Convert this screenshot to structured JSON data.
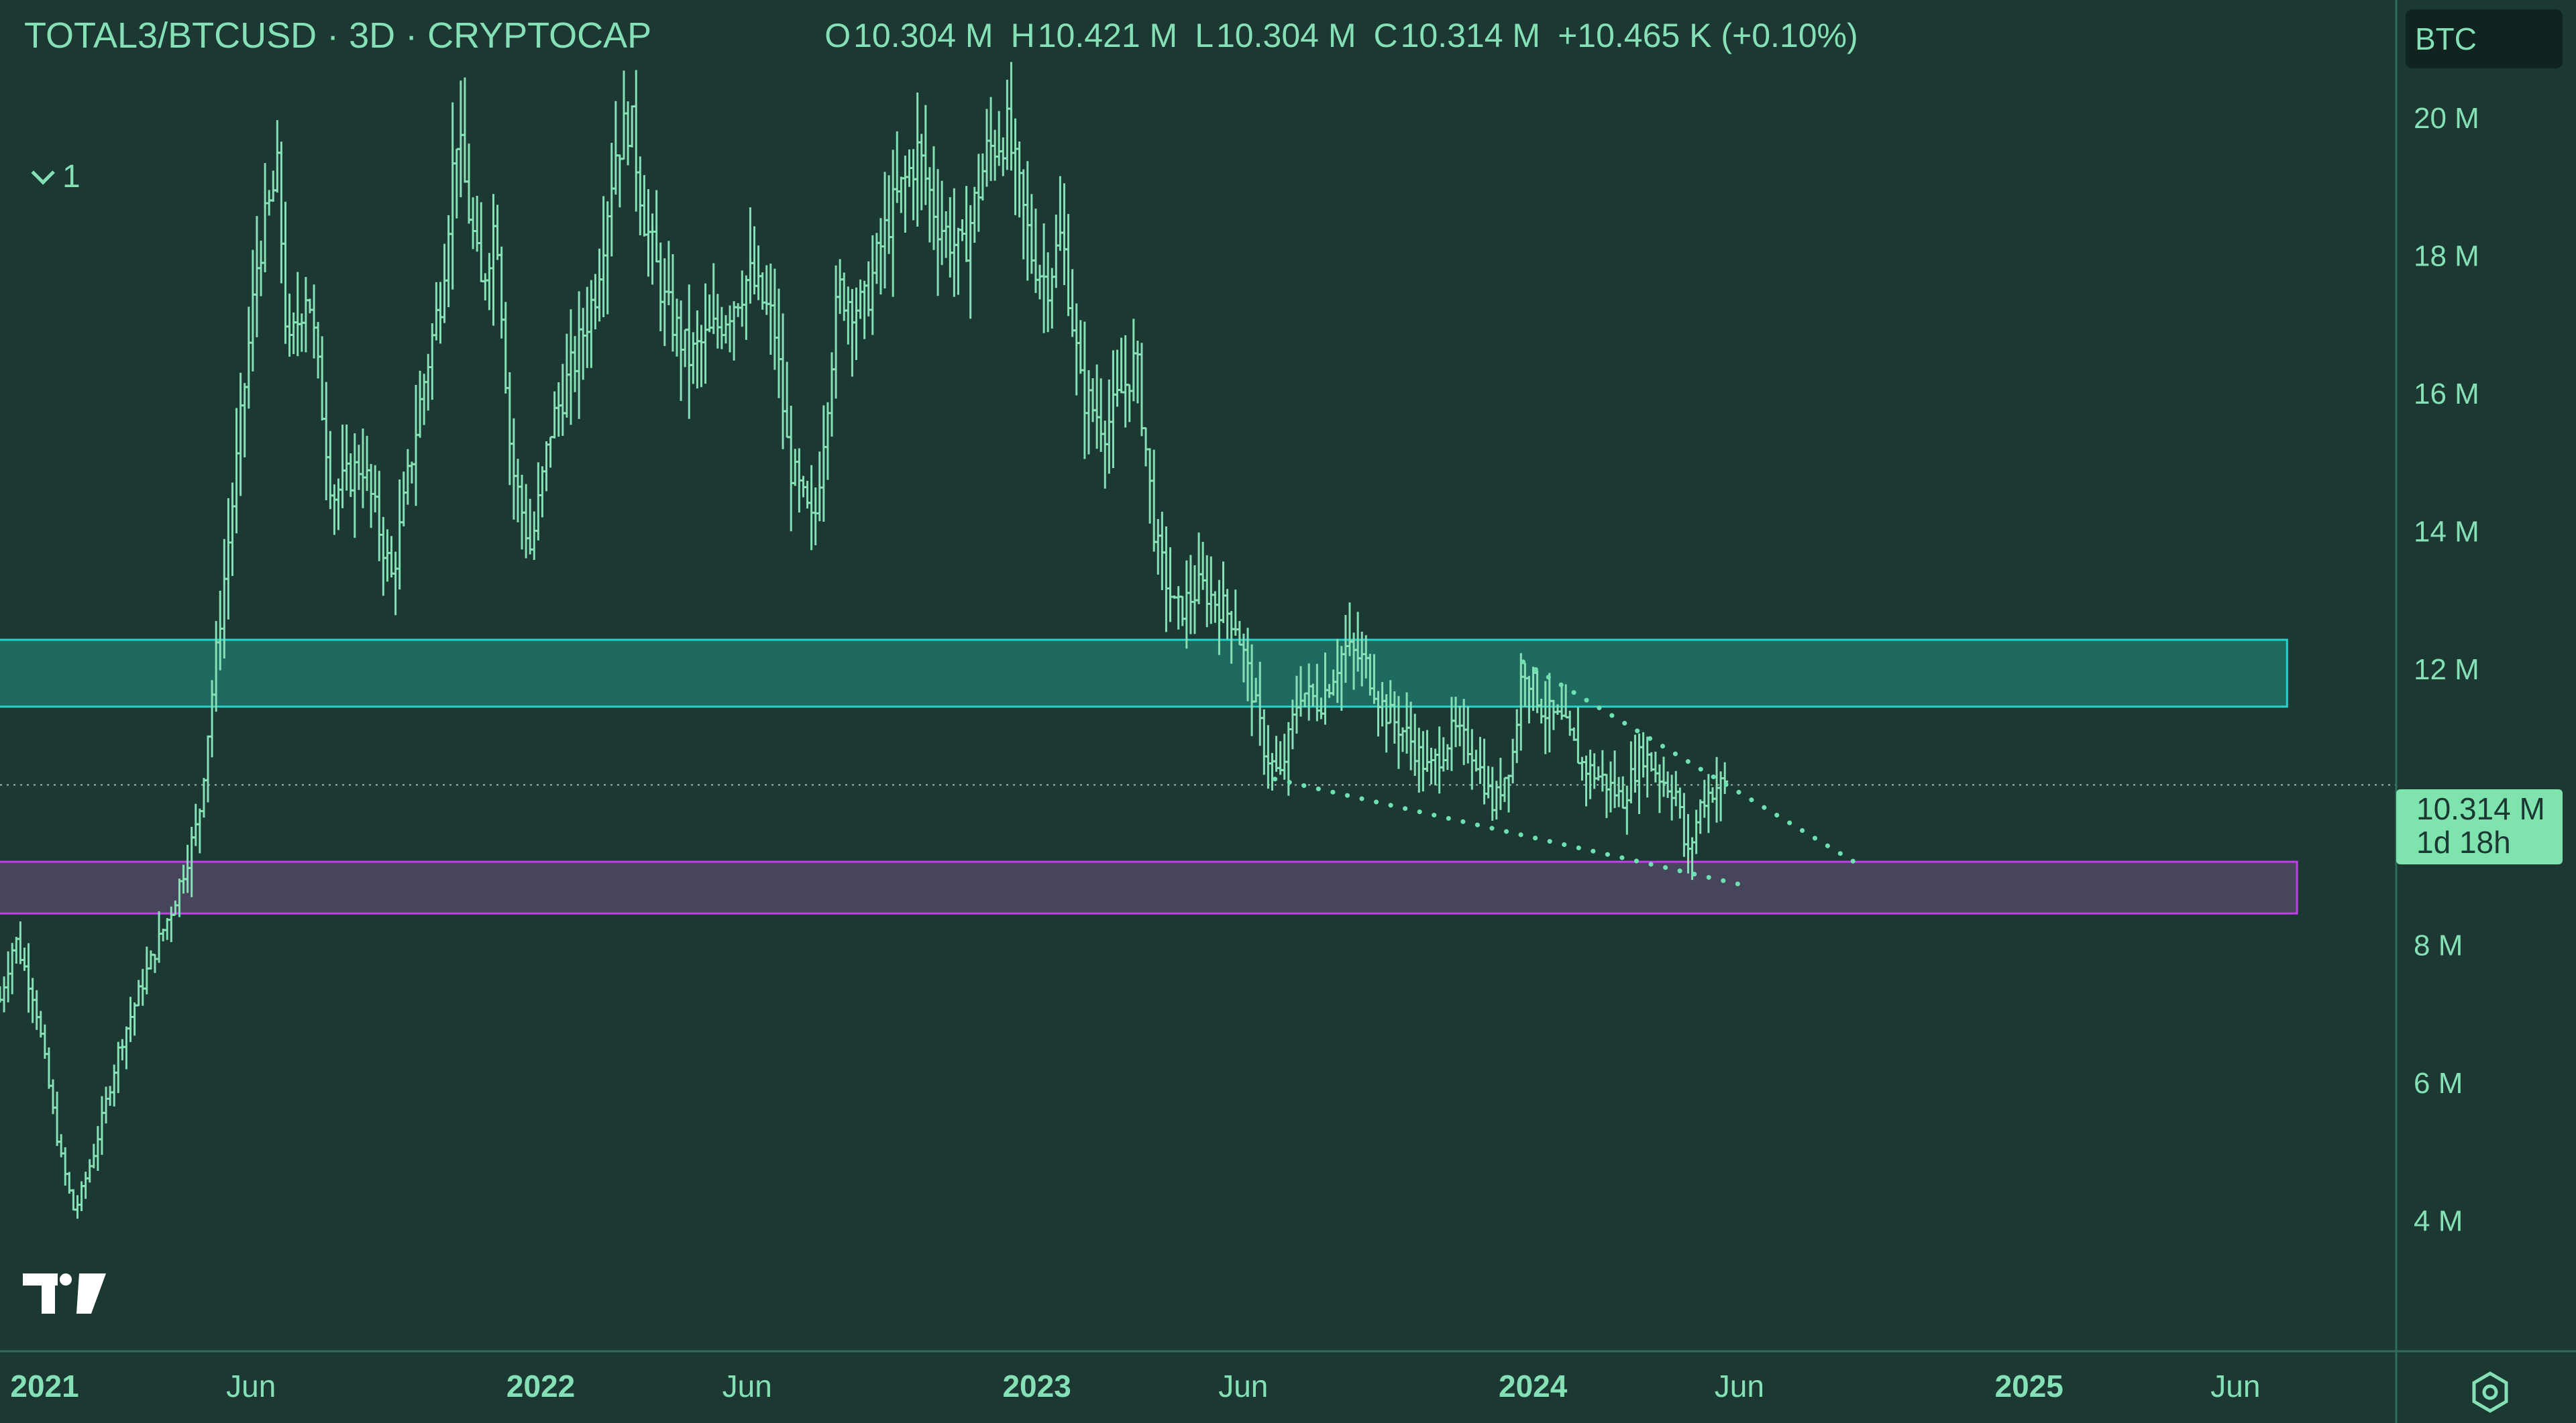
{
  "header": {
    "symbol": "TOTAL3/BTCUSD · 3D · CRYPTOCAP",
    "open_label": "O",
    "open": "10.304 M",
    "high_label": "H",
    "high": "10.421 M",
    "low_label": "L",
    "low": "10.304 M",
    "close_label": "C",
    "close": "10.314 M",
    "change": "+10.465 K (+0.10%)"
  },
  "indicator_toggle": {
    "count": "1"
  },
  "currency_button": "BTC",
  "price_tag": {
    "price": "10.314 M",
    "countdown": "1d 18h"
  },
  "icons": {
    "logo": "tradingview-logo-icon",
    "settings": "settings-gear-icon",
    "collapse": "chevron-down-icon"
  },
  "colors": {
    "background": "#1b3833",
    "candles": "#86e0b5",
    "resistance_zone": "#1e6a5e",
    "resistance_border": "#27d4cc",
    "support_zone": "#46455b",
    "support_border": "#c13ee8",
    "trendline": "#6fe0b2"
  },
  "chart_data": {
    "type": "ohlc",
    "title": "TOTAL3/BTCUSD · 3D · CRYPTOCAP",
    "y_axis": {
      "ticks": [
        4,
        6,
        8,
        12,
        14,
        16,
        18,
        20
      ],
      "tick_labels": [
        "4 M",
        "6 M",
        "8 M",
        "12 M",
        "14 M",
        "16 M",
        "18 M",
        "20 M"
      ],
      "range": [
        2.1,
        21.7
      ]
    },
    "x_axis": {
      "tick_labels": [
        {
          "t": 2021.0,
          "label": "2021",
          "bold": true
        },
        {
          "t": 2021.416,
          "label": "Jun",
          "bold": false
        },
        {
          "t": 2022.0,
          "label": "2022",
          "bold": true
        },
        {
          "t": 2022.416,
          "label": "Jun",
          "bold": false
        },
        {
          "t": 2023.0,
          "label": "2023",
          "bold": true
        },
        {
          "t": 2023.416,
          "label": "Jun",
          "bold": false
        },
        {
          "t": 2024.0,
          "label": "2024",
          "bold": true
        },
        {
          "t": 2024.416,
          "label": "Jun",
          "bold": false
        },
        {
          "t": 2025.0,
          "label": "2025",
          "bold": true
        },
        {
          "t": 2025.416,
          "label": "Jun",
          "bold": false
        }
      ],
      "range": [
        2020.91,
        2025.74
      ]
    },
    "price_line": 10.314,
    "zones": [
      {
        "name": "resistance",
        "from": 2020.9,
        "to": 2025.52,
        "y_low": 11.45,
        "y_high": 12.42
      },
      {
        "name": "support",
        "from": 2020.9,
        "to": 2025.54,
        "y_low": 8.45,
        "y_high": 9.2
      }
    ],
    "trendlines": [
      {
        "name": "upper",
        "from": [
          2023.98,
          12.1
        ],
        "to": [
          2024.67,
          9.1
        ]
      },
      {
        "name": "lower",
        "from": [
          2023.48,
          10.4
        ],
        "to": [
          2024.43,
          8.85
        ]
      }
    ],
    "price_path": [
      [
        2020.91,
        7.2
      ],
      [
        2020.94,
        8.1
      ],
      [
        2020.98,
        7.2
      ],
      [
        2021.03,
        5.0
      ],
      [
        2021.06,
        4.1
      ],
      [
        2021.1,
        5.0
      ],
      [
        2021.15,
        6.5
      ],
      [
        2021.2,
        7.5
      ],
      [
        2021.26,
        8.6
      ],
      [
        2021.31,
        9.8
      ],
      [
        2021.35,
        12.5
      ],
      [
        2021.38,
        14.5
      ],
      [
        2021.43,
        18.0
      ],
      [
        2021.47,
        19.2
      ],
      [
        2021.49,
        16.5
      ],
      [
        2021.53,
        17.6
      ],
      [
        2021.58,
        14.5
      ],
      [
        2021.64,
        15.0
      ],
      [
        2021.7,
        13.3
      ],
      [
        2021.76,
        16.0
      ],
      [
        2021.8,
        17.5
      ],
      [
        2021.83,
        19.8
      ],
      [
        2021.88,
        17.5
      ],
      [
        2021.91,
        18.6
      ],
      [
        2021.94,
        15.0
      ],
      [
        2021.98,
        13.7
      ],
      [
        2022.02,
        15.5
      ],
      [
        2022.07,
        16.5
      ],
      [
        2022.11,
        17.5
      ],
      [
        2022.15,
        19.5
      ],
      [
        2022.18,
        20.0
      ],
      [
        2022.21,
        18.5
      ],
      [
        2022.25,
        17.3
      ],
      [
        2022.3,
        16.5
      ],
      [
        2022.36,
        17.0
      ],
      [
        2022.42,
        17.7
      ],
      [
        2022.47,
        17.0
      ],
      [
        2022.5,
        15.0
      ],
      [
        2022.55,
        14.0
      ],
      [
        2022.6,
        17.5
      ],
      [
        2022.65,
        17.2
      ],
      [
        2022.7,
        18.5
      ],
      [
        2022.76,
        19.5
      ],
      [
        2022.8,
        18.5
      ],
      [
        2022.85,
        18.0
      ],
      [
        2022.9,
        19.5
      ],
      [
        2022.94,
        19.8
      ],
      [
        2022.99,
        18.0
      ],
      [
        2023.02,
        17.6
      ],
      [
        2023.05,
        18.3
      ],
      [
        2023.09,
        16.0
      ],
      [
        2023.14,
        15.5
      ],
      [
        2023.2,
        16.5
      ],
      [
        2023.24,
        13.8
      ],
      [
        2023.28,
        12.8
      ],
      [
        2023.33,
        13.2
      ],
      [
        2023.4,
        12.7
      ],
      [
        2023.43,
        11.8
      ],
      [
        2023.46,
        10.8
      ],
      [
        2023.49,
        10.4
      ],
      [
        2023.53,
        11.7
      ],
      [
        2023.57,
        11.5
      ],
      [
        2023.62,
        12.3
      ],
      [
        2023.66,
        12.1
      ],
      [
        2023.7,
        11.4
      ],
      [
        2023.75,
        11.0
      ],
      [
        2023.79,
        10.5
      ],
      [
        2023.84,
        11.1
      ],
      [
        2023.88,
        10.8
      ],
      [
        2023.92,
        10.0
      ],
      [
        2023.96,
        10.8
      ],
      [
        2023.98,
        12.1
      ],
      [
        2024.02,
        11.4
      ],
      [
        2024.06,
        11.2
      ],
      [
        2024.1,
        10.6
      ],
      [
        2024.14,
        10.4
      ],
      [
        2024.18,
        10.1
      ],
      [
        2024.22,
        10.8
      ],
      [
        2024.26,
        10.4
      ],
      [
        2024.29,
        10.2
      ],
      [
        2024.31,
        9.2
      ],
      [
        2024.34,
        10.1
      ],
      [
        2024.37,
        10.3
      ],
      [
        2024.39,
        10.314
      ]
    ]
  }
}
